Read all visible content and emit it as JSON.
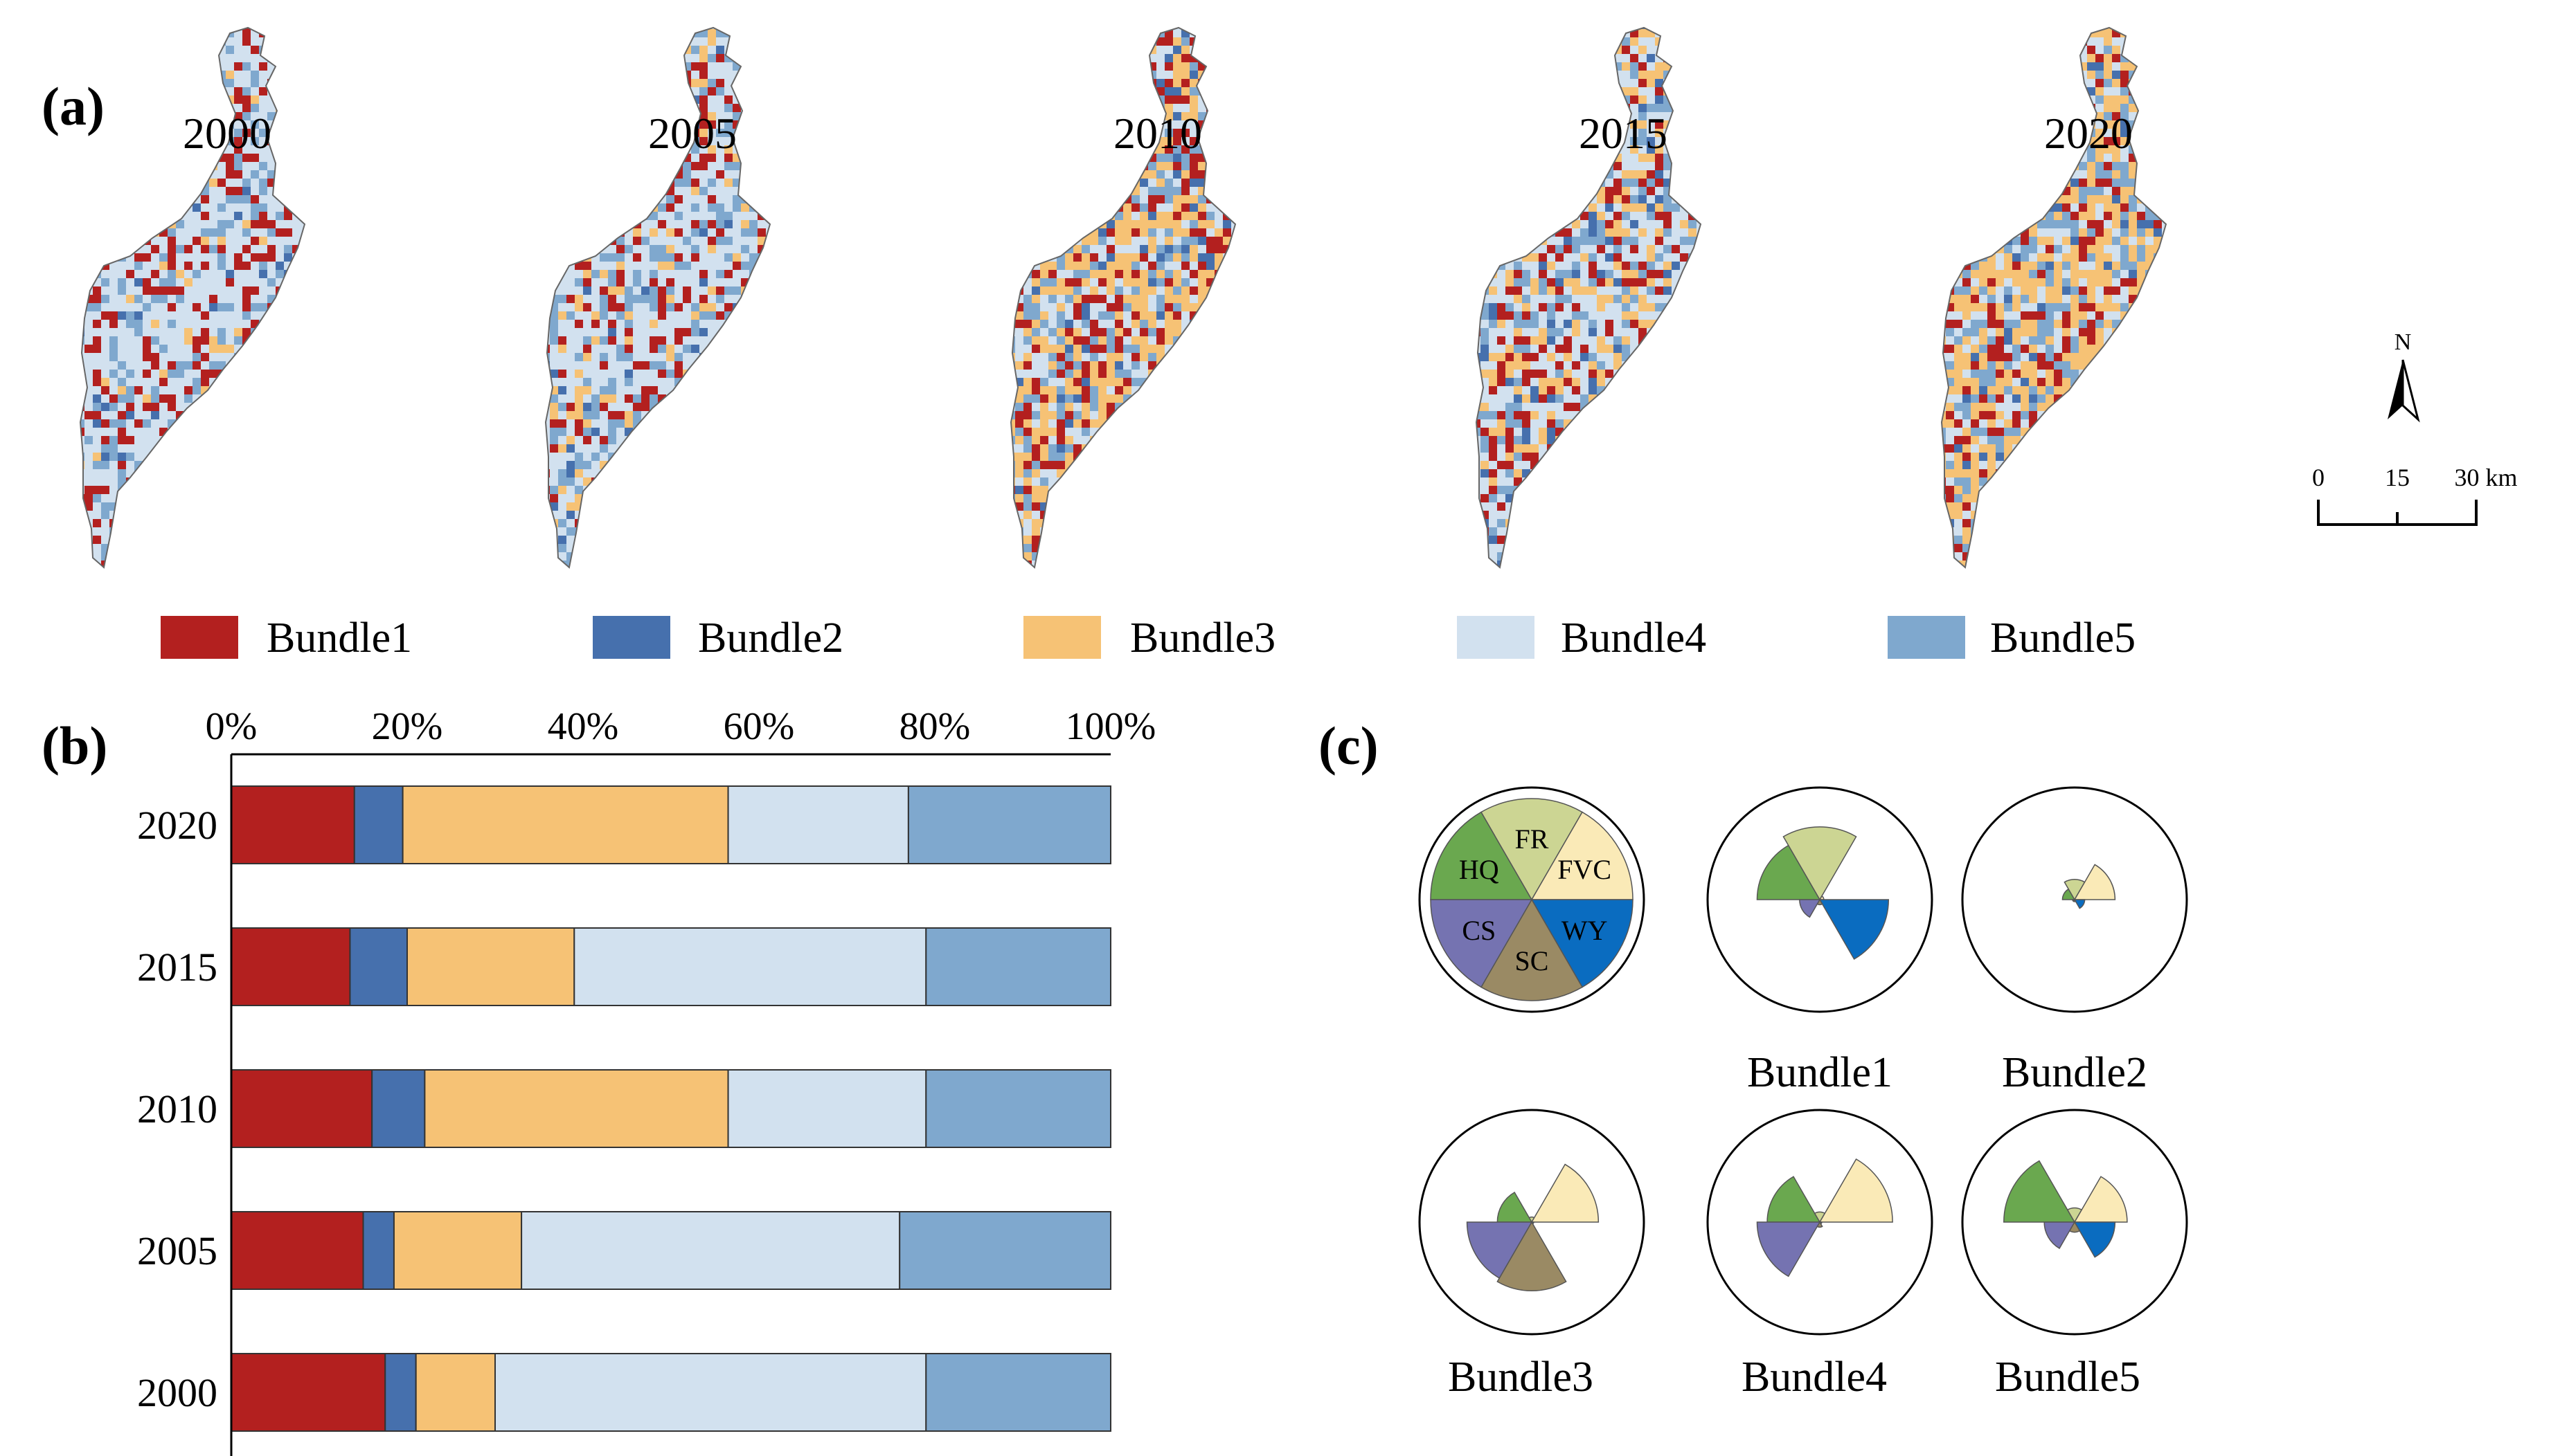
{
  "panel_labels": {
    "a": "(a)",
    "b": "(b)",
    "c": "(c)"
  },
  "colors": {
    "Bundle1": "#b3201f",
    "Bundle2": "#4670ad",
    "Bundle3": "#f6c275",
    "Bundle4": "#d2e1ef",
    "Bundle5": "#7fa8ce",
    "HQ": "#6aa84f",
    "FR": "#ccd593",
    "FVC": "#faeab7",
    "WY": "#0a6cc0",
    "SC": "#9a8a64",
    "CS": "#7573b1"
  },
  "maps": {
    "years": [
      "2000",
      "2005",
      "2010",
      "2015",
      "2020"
    ],
    "north": "N",
    "scale_labels": [
      "0",
      "15",
      "30 km"
    ]
  },
  "legend": [
    "Bundle1",
    "Bundle2",
    "Bundle3",
    "Bundle4",
    "Bundle5"
  ],
  "chart_data": [
    {
      "type": "bar",
      "orientation": "horizontal",
      "stacked": true,
      "title": "",
      "categories": [
        "2020",
        "2015",
        "2010",
        "2005",
        "2000"
      ],
      "xticks": [
        "0%",
        "20%",
        "40%",
        "60%",
        "80%",
        "100%"
      ],
      "xlim": [
        0,
        100
      ],
      "series": [
        {
          "name": "Bundle1",
          "values": [
            14,
            13.5,
            16,
            15,
            17.5
          ]
        },
        {
          "name": "Bundle2",
          "values": [
            5.5,
            6.5,
            6,
            3.5,
            3.5
          ]
        },
        {
          "name": "Bundle3",
          "values": [
            37,
            19,
            34.5,
            14.5,
            9
          ]
        },
        {
          "name": "Bundle4",
          "values": [
            20.5,
            40,
            22.5,
            43,
            49
          ]
        },
        {
          "name": "Bundle5",
          "values": [
            23,
            21,
            21,
            24,
            21
          ]
        }
      ]
    },
    {
      "type": "rose",
      "title": "",
      "services": [
        "HQ",
        "FR",
        "FVC",
        "WY",
        "SC",
        "CS"
      ],
      "reference_labels": [
        "HQ",
        "FR",
        "FVC",
        "WY",
        "SC",
        "CS"
      ],
      "bundles": [
        {
          "name": "Bundle1",
          "values": [
            0.62,
            0.72,
            0.04,
            0.68,
            0.05,
            0.2
          ]
        },
        {
          "name": "Bundle2",
          "values": [
            0.12,
            0.2,
            0.4,
            0.1,
            0.02,
            0.02
          ]
        },
        {
          "name": "Bundle3",
          "values": [
            0.34,
            0.05,
            0.66,
            0.02,
            0.68,
            0.64
          ]
        },
        {
          "name": "Bundle4",
          "values": [
            0.52,
            0.1,
            0.72,
            0.02,
            0.05,
            0.62
          ]
        },
        {
          "name": "Bundle5",
          "values": [
            0.7,
            0.14,
            0.52,
            0.4,
            0.1,
            0.3
          ]
        }
      ]
    }
  ]
}
